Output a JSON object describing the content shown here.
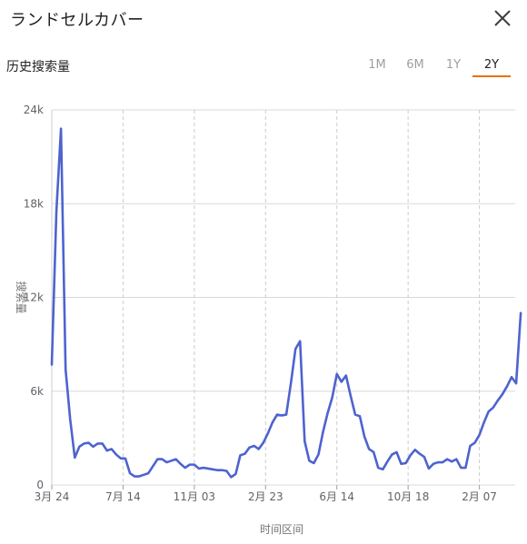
{
  "header": {
    "title": "ランドセルカバー"
  },
  "subheader": {
    "label": "历史搜索量",
    "tabs": [
      {
        "label": "1M",
        "active": false
      },
      {
        "label": "6M",
        "active": false
      },
      {
        "label": "1Y",
        "active": false
      },
      {
        "label": "2Y",
        "active": true
      }
    ]
  },
  "icons": {
    "close": "close-icon"
  },
  "colors": {
    "line": "#4e63cf",
    "active_tab": "#e8710a",
    "grid": "#d9d9d9"
  },
  "chart_data": {
    "type": "line",
    "xlabel": "时间区间",
    "ylabel": "搜索量",
    "ylim": [
      0,
      24000
    ],
    "yticks": [
      {
        "value": 0,
        "label": "0"
      },
      {
        "value": 6000,
        "label": "6k"
      },
      {
        "value": 12000,
        "label": "12k"
      },
      {
        "value": 18000,
        "label": "18k"
      },
      {
        "value": 24000,
        "label": "24k"
      }
    ],
    "xlim": [
      0,
      100
    ],
    "xticks": [
      {
        "index": 0,
        "label": "3月 24"
      },
      {
        "index": 15.5,
        "label": "7月 14"
      },
      {
        "index": 31,
        "label": "11月 03"
      },
      {
        "index": 46.5,
        "label": "2月 23"
      },
      {
        "index": 62,
        "label": "6月 14"
      },
      {
        "index": 77.5,
        "label": "10月 18"
      },
      {
        "index": 93,
        "label": "2月 07"
      }
    ],
    "series": [
      {
        "values": [
          7700,
          17500,
          22800,
          7400,
          4200,
          1750,
          2450,
          2650,
          2700,
          2450,
          2650,
          2650,
          2200,
          2300,
          1950,
          1700,
          1700,
          750,
          550,
          550,
          650,
          750,
          1200,
          1650,
          1650,
          1450,
          1550,
          1650,
          1350,
          1100,
          1300,
          1300,
          1050,
          1100,
          1050,
          1000,
          950,
          950,
          900,
          500,
          700,
          1900,
          2000,
          2400,
          2500,
          2300,
          2700,
          3300,
          4000,
          4500,
          4450,
          4500,
          6500,
          8700,
          9200,
          2800,
          1550,
          1400,
          1950,
          3400,
          4600,
          5600,
          7100,
          6600,
          7000,
          5700,
          4500,
          4400,
          3100,
          2300,
          2100,
          1100,
          1000,
          1500,
          1950,
          2100,
          1350,
          1400,
          1900,
          2250,
          2000,
          1800,
          1050,
          1350,
          1450,
          1450,
          1650,
          1500,
          1650,
          1100,
          1100,
          2500,
          2700,
          3200,
          4000,
          4700,
          4950,
          5400,
          5800,
          6300,
          6900,
          6500,
          11000
        ]
      }
    ]
  }
}
